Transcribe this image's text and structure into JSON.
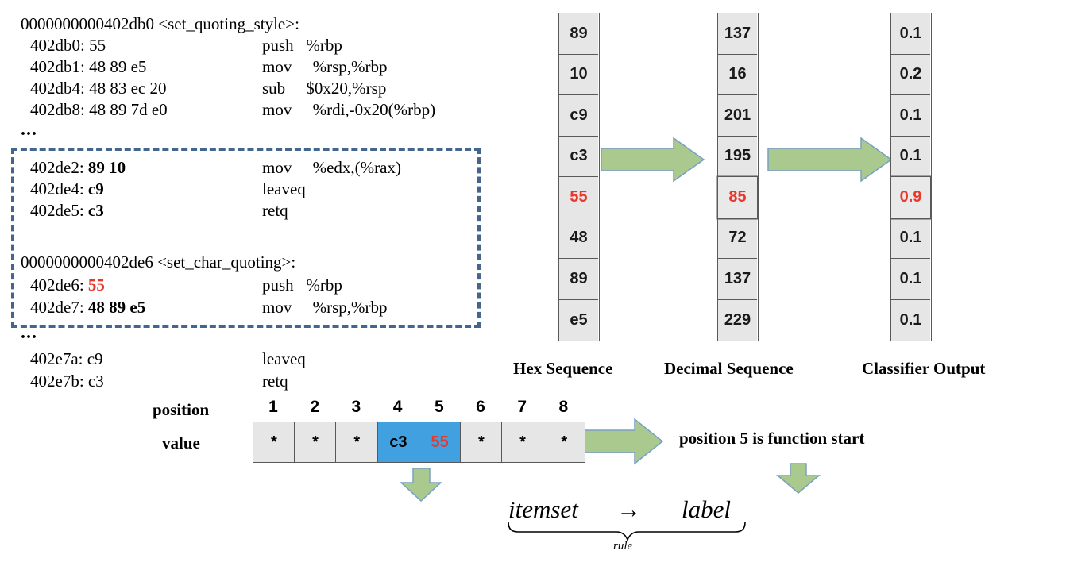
{
  "disassembly": {
    "lines": [
      {
        "addr": "0000000000402db0 <set_quoting_style>:",
        "bytes": "",
        "instr": ""
      },
      {
        "addr": "402db0: ",
        "bytes": "55",
        "instr": "push   %rbp"
      },
      {
        "addr": "402db1: ",
        "bytes": "48 89 e5",
        "instr": "mov     %rsp,%rbp"
      },
      {
        "addr": "402db4: ",
        "bytes": "48 83 ec 20",
        "instr": "sub     $0x20,%rsp"
      },
      {
        "addr": "402db8: ",
        "bytes": "48 89 7d e0",
        "instr": "mov     %rdi,-0x20(%rbp)"
      },
      {
        "addr": "402de2: ",
        "bytes": "89 10",
        "instr": "mov     %edx,(%rax)"
      },
      {
        "addr": "402de4: ",
        "bytes": "c9",
        "instr": "leaveq"
      },
      {
        "addr": "402de5: ",
        "bytes": "c3",
        "instr": "retq"
      },
      {
        "addr": "0000000000402de6 <set_char_quoting>:",
        "bytes": "",
        "instr": ""
      },
      {
        "addr": "402de6: ",
        "bytes": "55",
        "instr": "push   %rbp"
      },
      {
        "addr": "402de7: ",
        "bytes": "48 89 e5",
        "instr": "mov     %rsp,%rbp"
      },
      {
        "addr": "402e7a: ",
        "bytes": "c9",
        "instr": "leaveq"
      },
      {
        "addr": "402e7b: ",
        "bytes": "c3",
        "instr": "retq"
      }
    ],
    "ellipsis": "..."
  },
  "columns": {
    "hex": {
      "label": "Hex Sequence",
      "values": [
        "89",
        "10",
        "c9",
        "c3",
        "55",
        "48",
        "89",
        "e5"
      ]
    },
    "decimal": {
      "label": "Decimal Sequence",
      "values": [
        "137",
        "16",
        "201",
        "195",
        "85",
        "72",
        "137",
        "229"
      ]
    },
    "classifier": {
      "label": "Classifier Output",
      "values": [
        "0.1",
        "0.2",
        "0.1",
        "0.1",
        "0.9",
        "0.1",
        "0.1",
        "0.1"
      ]
    },
    "highlight_index": 4
  },
  "positions": {
    "row_label_position": "position",
    "row_label_value": "value",
    "numbers": [
      "1",
      "2",
      "3",
      "4",
      "5",
      "6",
      "7",
      "8"
    ],
    "values": [
      "*",
      "*",
      "*",
      "c3",
      "55",
      "*",
      "*",
      "*"
    ],
    "highlighted": [
      3,
      4
    ]
  },
  "result_text": "position 5 is function start",
  "rule": {
    "itemset": "itemset",
    "arrow": "→",
    "label": "label",
    "caption": "rule"
  },
  "colors": {
    "red": "#e8372b",
    "box_blue": "#40a0e0",
    "arrow_green": "#a9c98f",
    "arrow_stroke": "#7a9fc4",
    "dash": "#44658d"
  }
}
